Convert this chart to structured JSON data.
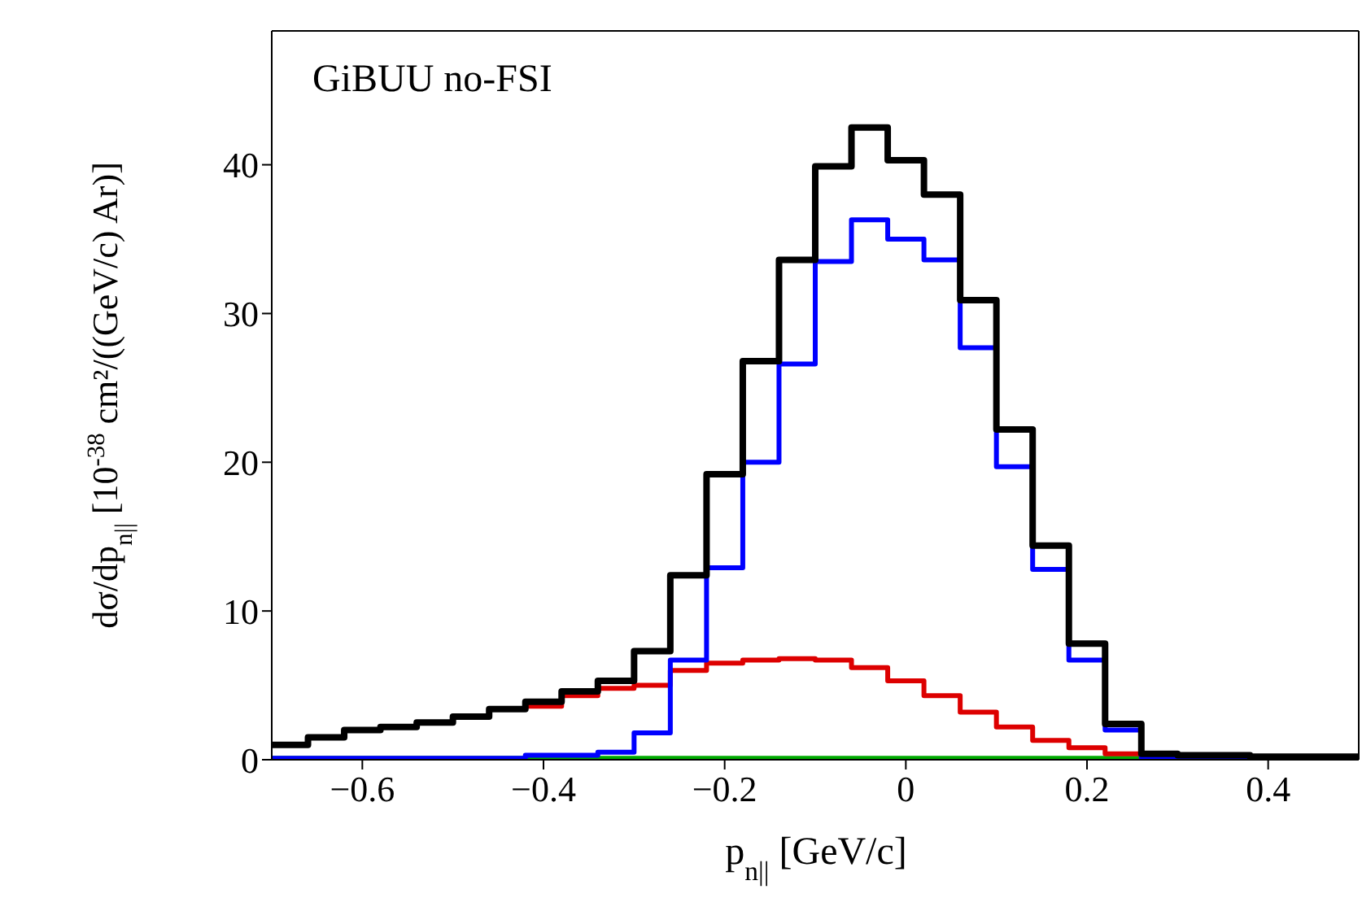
{
  "chart_data": {
    "type": "histogram",
    "title": null,
    "annotations": [
      "GiBUU no-FSI"
    ],
    "xlabel": "p$_{n||}$ [GeV/c]",
    "ylabel": "dσ/dp$_{n||}$ [10$^{-38}$ cm²/((GeV/c) Ar)]",
    "bins": [
      -0.7,
      -0.66,
      -0.62,
      -0.58,
      -0.54,
      -0.5,
      -0.46,
      -0.42,
      -0.38,
      -0.34,
      -0.3,
      -0.26,
      -0.22,
      -0.18,
      -0.14,
      -0.1,
      -0.06,
      -0.02,
      0.02,
      0.06,
      0.1,
      0.14,
      0.18,
      0.22,
      0.26,
      0.3,
      0.34,
      0.38,
      0.42,
      0.46,
      0.5
    ],
    "series": [
      {
        "color": "#00aa00",
        "values": [
          0.1,
          0.1,
          0.1,
          0.1,
          0.1,
          0.1,
          0.1,
          0.1,
          0.1,
          0.1,
          0.1,
          0.1,
          0.1,
          0.1,
          0.1,
          0.1,
          0.1,
          0.1,
          0.1,
          0.1,
          0.1,
          0.1,
          0.1,
          0.1,
          0.1,
          0.1,
          0.1,
          0.1,
          0.1,
          0.1
        ]
      },
      {
        "color": "#dd0000",
        "values": [
          1.0,
          1.5,
          2.0,
          2.2,
          2.5,
          2.9,
          3.4,
          3.6,
          4.3,
          4.8,
          5.0,
          6.0,
          6.5,
          6.7,
          6.8,
          6.7,
          6.2,
          5.3,
          4.3,
          3.2,
          2.2,
          1.3,
          0.8,
          0.4,
          0.1,
          0.1,
          0.1,
          0.1,
          0.1,
          0.1
        ]
      },
      {
        "color": "#0000ff",
        "values": [
          0.1,
          0.1,
          0.1,
          0.1,
          0.1,
          0.1,
          0.1,
          0.3,
          0.3,
          0.5,
          1.8,
          6.7,
          12.9,
          20.0,
          26.6,
          33.5,
          36.3,
          35.0,
          33.6,
          27.7,
          19.7,
          12.8,
          6.7,
          2.0,
          0.1,
          0.1,
          0.1,
          0.1,
          0.1,
          0.1
        ]
      },
      {
        "color": "#000000",
        "values": [
          1.0,
          1.5,
          2.0,
          2.2,
          2.5,
          2.9,
          3.4,
          3.9,
          4.6,
          5.3,
          7.3,
          12.4,
          19.2,
          26.8,
          33.6,
          39.9,
          42.5,
          40.3,
          38.0,
          30.9,
          22.2,
          14.4,
          7.8,
          2.4,
          0.4,
          0.3,
          0.3,
          0.2,
          0.2,
          0.2
        ]
      }
    ],
    "xlim": [
      -0.7,
      0.5
    ],
    "xticks": [
      -0.6,
      -0.4,
      -0.2,
      0,
      0.2,
      0.4
    ],
    "ylim": [
      0,
      49
    ],
    "yticks": [
      0,
      10,
      20,
      30,
      40
    ],
    "grid": false
  }
}
